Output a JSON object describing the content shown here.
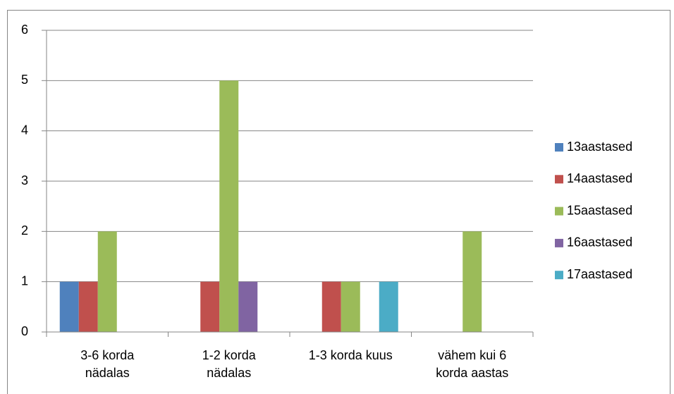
{
  "chart_data": {
    "type": "bar",
    "categories": [
      "3-6 korda nädalas",
      "1-2 korda nädalas",
      "1-3 korda kuus",
      "vähem kui 6 korda aastas"
    ],
    "series": [
      {
        "name": "13aastased",
        "color": "#4f81bd",
        "values": [
          1,
          0,
          0,
          0
        ]
      },
      {
        "name": "14aastased",
        "color": "#c0504d",
        "values": [
          1,
          1,
          1,
          0
        ]
      },
      {
        "name": "15aastased",
        "color": "#9bbb59",
        "values": [
          2,
          5,
          1,
          2
        ]
      },
      {
        "name": "16aastased",
        "color": "#8064a2",
        "values": [
          0,
          1,
          0,
          0
        ]
      },
      {
        "name": "17aastased",
        "color": "#4bacc6",
        "values": [
          0,
          0,
          1,
          0
        ]
      }
    ],
    "ylim": [
      0,
      6
    ],
    "yticks": [
      0,
      1,
      2,
      3,
      4,
      5,
      6
    ],
    "grid": true,
    "legend": "right"
  }
}
